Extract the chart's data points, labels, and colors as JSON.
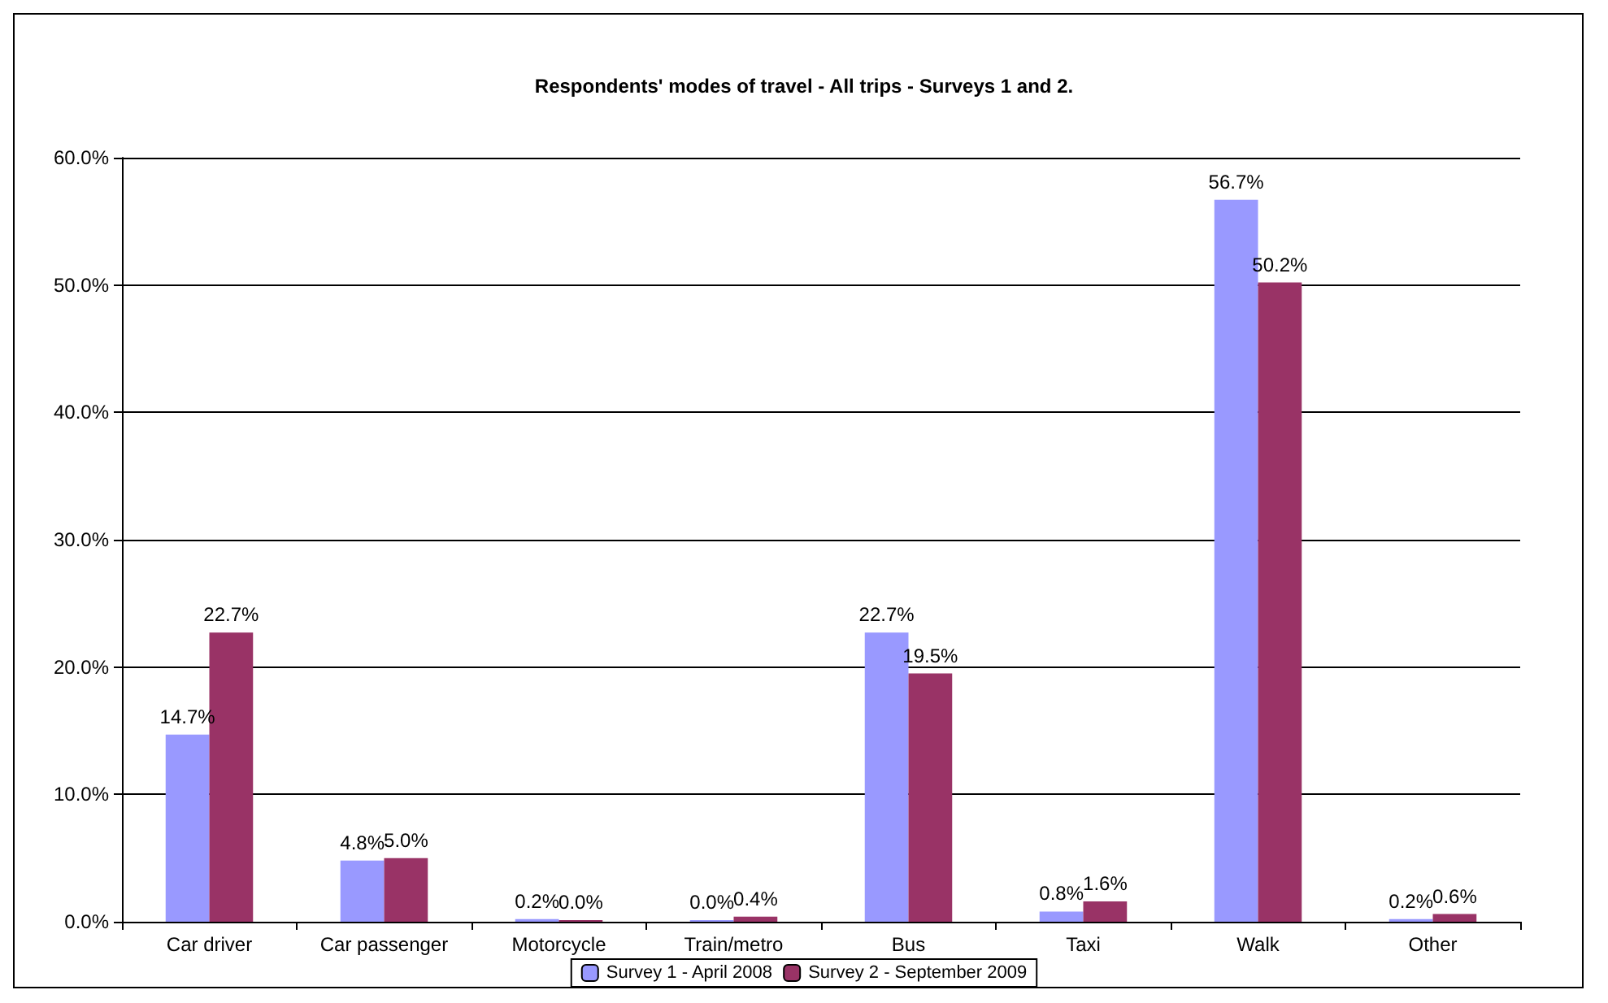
{
  "chart_data": {
    "type": "bar",
    "title": "Respondents' modes of travel - All trips - Surveys 1 and 2.",
    "categories": [
      "Car driver",
      "Car passenger",
      "Motorcycle",
      "Train/metro",
      "Bus",
      "Taxi",
      "Walk",
      "Other"
    ],
    "series": [
      {
        "name": "Survey 1 - April 2008",
        "color": "#9999ff",
        "values": [
          14.7,
          4.8,
          0.2,
          0.0,
          22.7,
          0.8,
          56.7,
          0.2
        ],
        "value_labels": [
          "14.7%",
          "4.8%",
          "0.2%",
          "0.0%",
          "22.7%",
          "0.8%",
          "56.7%",
          "0.2%"
        ]
      },
      {
        "name": "Survey 2 - September 2009",
        "color": "#993366",
        "values": [
          22.7,
          5.0,
          0.0,
          0.4,
          19.5,
          1.6,
          50.2,
          0.6
        ],
        "value_labels": [
          "22.7%",
          "5.0%",
          "0.0%",
          "0.4%",
          "19.5%",
          "1.6%",
          "50.2%",
          "0.6%"
        ]
      }
    ],
    "ylim": [
      0,
      60
    ],
    "yticks": [
      {
        "value": 0,
        "label": "0.0%"
      },
      {
        "value": 10,
        "label": "10.0%"
      },
      {
        "value": 20,
        "label": "20.0%"
      },
      {
        "value": 30,
        "label": "30.0%"
      },
      {
        "value": 40,
        "label": "40.0%"
      },
      {
        "value": 50,
        "label": "50.0%"
      },
      {
        "value": 60,
        "label": "60.0%"
      }
    ],
    "grid": "y",
    "legend": "bottom"
  }
}
